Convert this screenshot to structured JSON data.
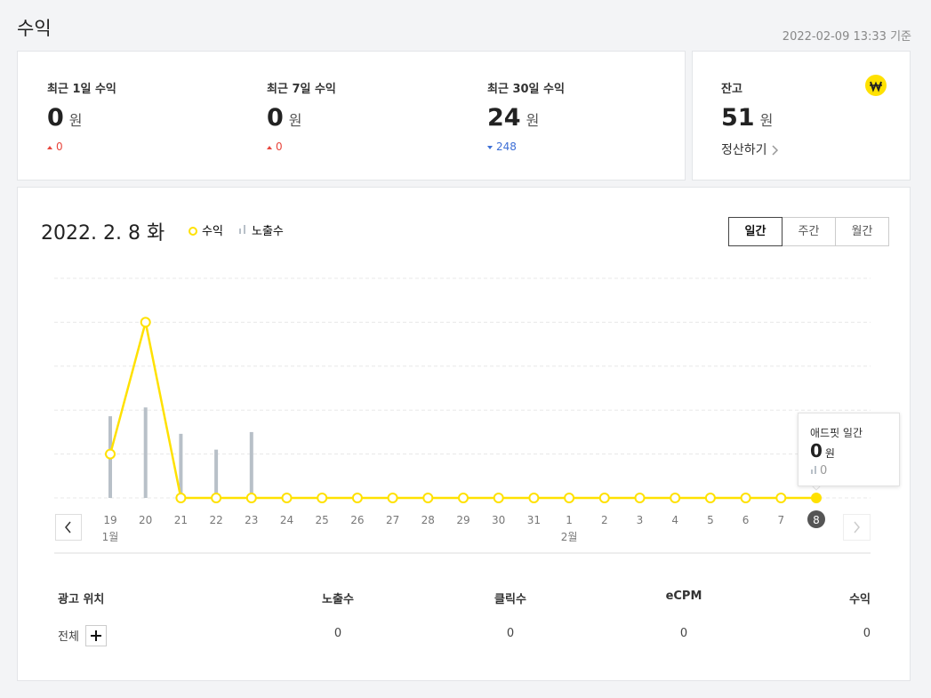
{
  "header": {
    "title": "수익",
    "timestamp": "2022-02-09 13:33 기준"
  },
  "summary": [
    {
      "label": "최근 1일 수익",
      "value": 0,
      "unit": "원",
      "change": 0,
      "trend": "up"
    },
    {
      "label": "최근 7일 수익",
      "value": 0,
      "unit": "원",
      "change": 0,
      "trend": "up"
    },
    {
      "label": "최근 30일 수익",
      "value": 24,
      "unit": "원",
      "change": 248,
      "trend": "down"
    }
  ],
  "balance": {
    "label": "잔고",
    "value": 51,
    "unit": "원",
    "link": "정산하기"
  },
  "chart_data": {
    "type": "line",
    "title": "2022. 2. 8 화",
    "tabs": [
      "일간",
      "주간",
      "월간"
    ],
    "selected_tab": 0,
    "categories": [
      "19",
      "20",
      "21",
      "22",
      "23",
      "24",
      "25",
      "26",
      "27",
      "28",
      "29",
      "30",
      "31",
      "1",
      "2",
      "3",
      "4",
      "5",
      "6",
      "7",
      "8"
    ],
    "month_labels": [
      "1월",
      null,
      null,
      null,
      null,
      null,
      null,
      null,
      null,
      null,
      null,
      null,
      null,
      "2월",
      null,
      null,
      null,
      null,
      null,
      null,
      null
    ],
    "selected_index": 20,
    "series": [
      {
        "name": "수익",
        "color": "#ffe100",
        "values": [
          5,
          20,
          0,
          0,
          0,
          0,
          0,
          0,
          0,
          0,
          0,
          0,
          0,
          0,
          0,
          0,
          0,
          0,
          0,
          0,
          0
        ]
      },
      {
        "name": "노출수",
        "color": "#b8c0c8",
        "type": "bar",
        "axis": "y2",
        "values": [
          93,
          103,
          73,
          55,
          75,
          0,
          0,
          0,
          0,
          0,
          0,
          0,
          0,
          0,
          0,
          0,
          0,
          0,
          0,
          0,
          0
        ]
      }
    ],
    "ylim": [
      0,
      25
    ],
    "yticks": [
      0,
      5,
      10,
      15,
      20,
      25
    ],
    "y2lim": [
      0,
      250
    ],
    "grid": true,
    "tooltip": {
      "title": "애드핏 일간",
      "value": 0,
      "unit": "원",
      "impressions": 0
    }
  },
  "table": {
    "headers": [
      "광고 위치",
      "노출수",
      "클릭수",
      "eCPM",
      "수익"
    ],
    "rows": [
      [
        "전체",
        0,
        0,
        0,
        0
      ]
    ]
  }
}
